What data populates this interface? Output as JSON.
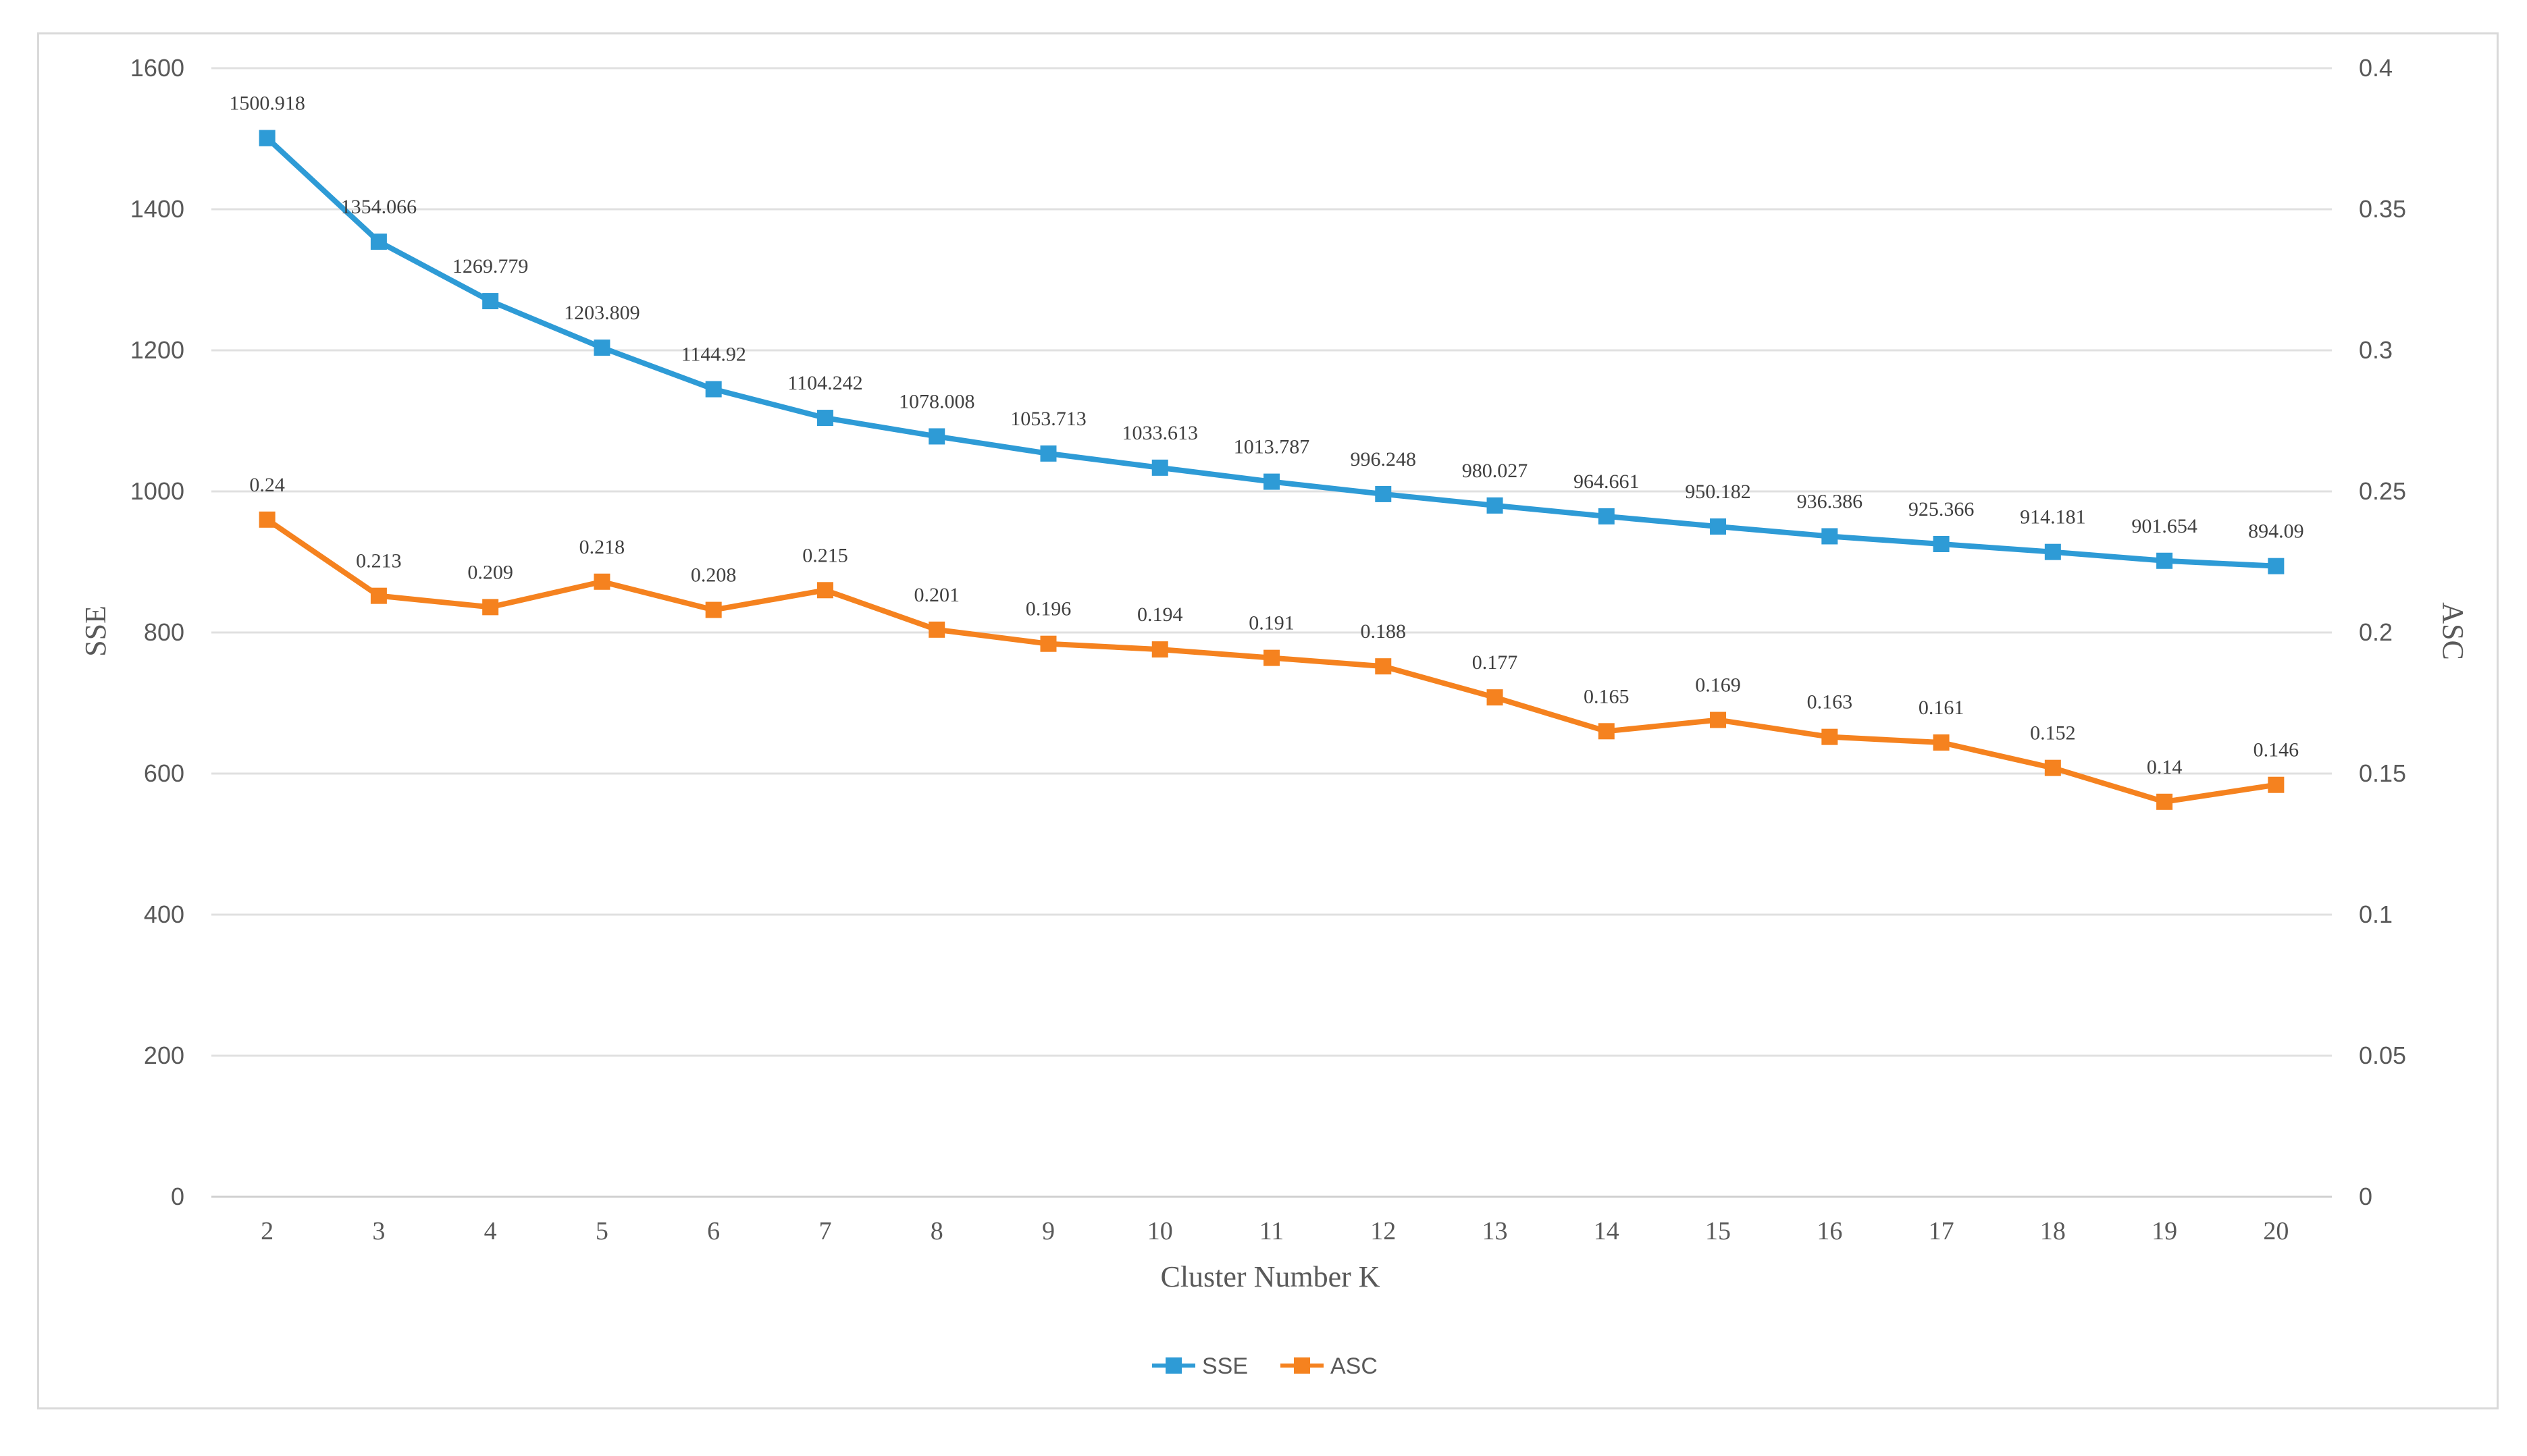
{
  "chart_data": {
    "type": "line",
    "title": "",
    "xlabel": "Cluster Number K",
    "ylabel": "SSE",
    "y2label": "ASC",
    "x": [
      2,
      3,
      4,
      5,
      6,
      7,
      8,
      9,
      10,
      11,
      12,
      13,
      14,
      15,
      16,
      17,
      18,
      19,
      20
    ],
    "ylim": [
      0,
      1600
    ],
    "y2lim": [
      0,
      0.4
    ],
    "yticks": [
      "0",
      "200",
      "400",
      "600",
      "800",
      "1000",
      "1200",
      "1400",
      "1600"
    ],
    "y2ticks": [
      "0",
      "0.05",
      "0.1",
      "0.15",
      "0.2",
      "0.25",
      "0.3",
      "0.35",
      "0.4"
    ],
    "grid": true,
    "legend_position": "bottom",
    "series": [
      {
        "name": "SSE",
        "axis": "left",
        "color": "#2e9bd6",
        "values": [
          1500.918,
          1354.066,
          1269.779,
          1203.809,
          1144.92,
          1104.242,
          1078.008,
          1053.713,
          1033.613,
          1013.787,
          996.248,
          980.027,
          964.661,
          950.182,
          936.386,
          925.366,
          914.181,
          901.654,
          894.09
        ],
        "labels": [
          "1500.918",
          "1354.066",
          "1269.779",
          "1203.809",
          "1144.92",
          "1104.242",
          "1078.008",
          "1053.713",
          "1033.613",
          "1013.787",
          "996.248",
          "980.027",
          "964.661",
          "950.182",
          "936.386",
          "925.366",
          "914.181",
          "901.654",
          "894.09"
        ]
      },
      {
        "name": "ASC",
        "axis": "right",
        "color": "#f5821f",
        "values": [
          0.24,
          0.213,
          0.209,
          0.218,
          0.208,
          0.215,
          0.201,
          0.196,
          0.194,
          0.191,
          0.188,
          0.177,
          0.165,
          0.169,
          0.163,
          0.161,
          0.152,
          0.14,
          0.146
        ],
        "labels": [
          "0.24",
          "0.213",
          "0.209",
          "0.218",
          "0.208",
          "0.215",
          "0.201",
          "0.196",
          "0.194",
          "0.191",
          "0.188",
          "0.177",
          "0.165",
          "0.169",
          "0.163",
          "0.161",
          "0.152",
          "0.14",
          "0.146"
        ]
      }
    ]
  }
}
